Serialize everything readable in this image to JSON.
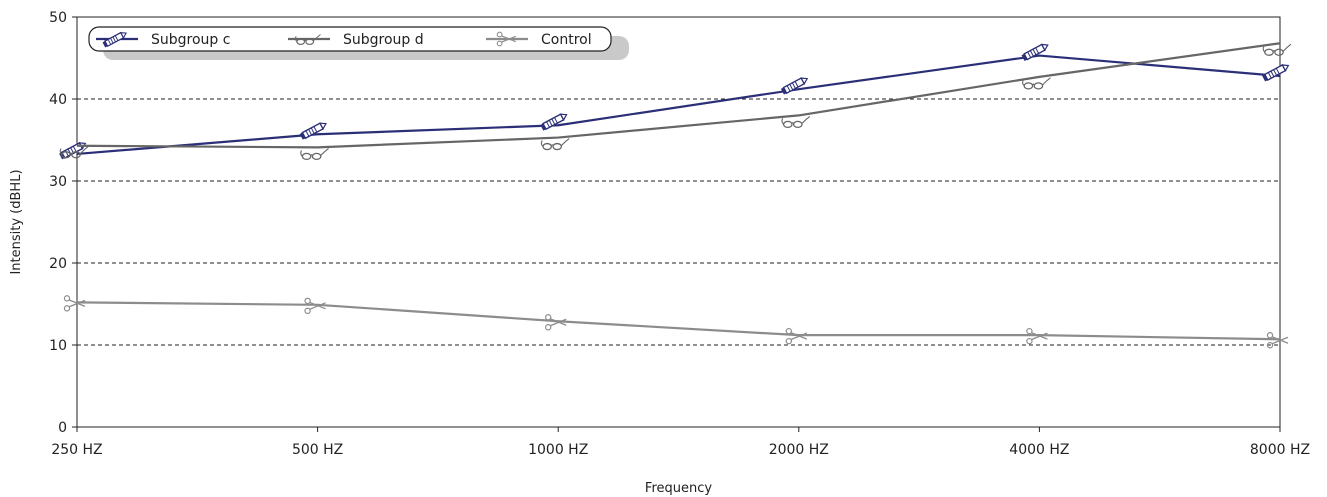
{
  "chart_data": {
    "type": "line",
    "title": "",
    "xlabel": "Frequency",
    "ylabel": "Intensity (dBHL)",
    "categories": [
      "250 HZ",
      "500 HZ",
      "1000 HZ",
      "2000 HZ",
      "4000 HZ",
      "8000 HZ"
    ],
    "yticks": [
      "0",
      "10",
      "20",
      "30",
      "40",
      "50"
    ],
    "ylim": [
      0,
      50
    ],
    "grid": "horizontal-dashed",
    "legend_position": "top-left",
    "series": [
      {
        "name": "Subgroup c",
        "values": [
          33.3,
          35.7,
          36.8,
          41.2,
          45.3,
          42.8
        ],
        "color": "#2b2f78",
        "marker": "pencil-icon"
      },
      {
        "name": "Subgroup d",
        "values": [
          34.3,
          34.1,
          35.3,
          38.0,
          42.7,
          46.8
        ],
        "color": "#666666",
        "marker": "glasses-icon"
      },
      {
        "name": "Control",
        "values": [
          15.2,
          14.9,
          12.9,
          11.2,
          11.2,
          10.7
        ],
        "color": "#8c8c8c",
        "marker": "scissors-icon"
      }
    ]
  }
}
